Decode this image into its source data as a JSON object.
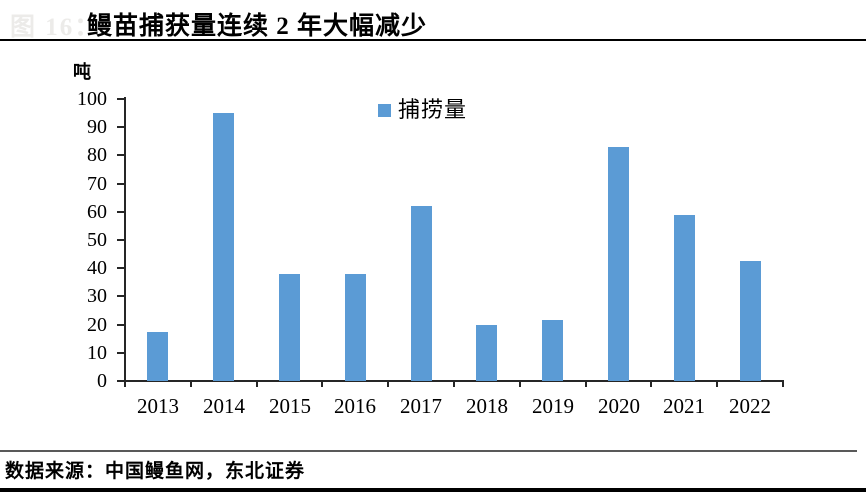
{
  "header": {
    "figure_label": "图 16：",
    "title": "鳗苗捕获量连续 2 年大幅减少"
  },
  "chart": {
    "unit": "吨",
    "legend_label": "捕捞量"
  },
  "chart_data": {
    "type": "bar",
    "title": "鳗苗捕获量连续 2 年大幅减少",
    "ylabel": "吨",
    "xlabel": "",
    "legend": [
      "捕捞量"
    ],
    "legend_position": "top-center",
    "categories": [
      "2013",
      "2014",
      "2015",
      "2016",
      "2017",
      "2018",
      "2019",
      "2020",
      "2021",
      "2022"
    ],
    "series": [
      {
        "name": "捕捞量",
        "values": [
          17.5,
          95,
          38,
          38,
          62,
          20,
          21.5,
          83,
          59,
          42.5
        ]
      }
    ],
    "ylim": [
      0,
      100
    ],
    "ytick_step": 10,
    "grid": false,
    "bar_color": "#5b9bd5"
  },
  "colors": {
    "bar": "#5b9bd5",
    "axis": "#262626",
    "faint_label": "#ecebe9"
  },
  "footer": {
    "source": "数据来源：中国鳗鱼网，东北证券"
  }
}
